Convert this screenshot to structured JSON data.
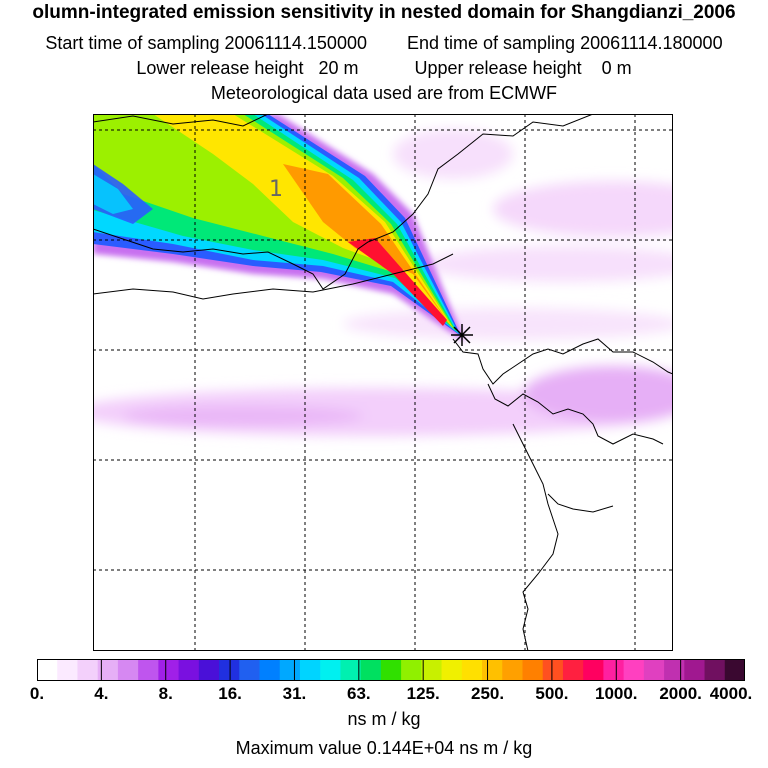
{
  "header": {
    "title": "olumn-integrated emission sensitivity in nested domain for Shangdianzi_2006",
    "start_label": "Start time of sampling",
    "start_value": "20061114.150000",
    "end_label": "End time of sampling",
    "end_value": "20061114.180000",
    "lower_label": "Lower release height",
    "lower_value": "20 m",
    "upper_label": "Upper release height",
    "upper_value": "0 m",
    "met_line": "Meteorological data used are from ECMWF"
  },
  "map": {
    "plume_label": "1",
    "receptor_marker": "star",
    "colors": {
      "lightpink": "#f5d8fb",
      "pink": "#e9b1f6",
      "violet": "#c870f0",
      "blue": "#2a5cff",
      "cyan": "#00e5ff",
      "green": "#9cf000",
      "yellow": "#ffe600",
      "orange": "#ff9a00",
      "red": "#ff1030"
    }
  },
  "colorbar": {
    "labels": [
      "0.",
      "4.",
      "8.",
      "16.",
      "31.",
      "63.",
      "125.",
      "250.",
      "500.",
      "1000.",
      "2000.",
      "4000."
    ],
    "colors": [
      "#ffffff",
      "#fbeaff",
      "#f3d0fb",
      "#e6aff6",
      "#d688f2",
      "#bf55ee",
      "#a020e8",
      "#7a10e0",
      "#4a10d8",
      "#2030e0",
      "#2060f0",
      "#0080ff",
      "#00a8ff",
      "#00d4ff",
      "#00f0f0",
      "#00f0b0",
      "#00e060",
      "#30e000",
      "#90f000",
      "#c8f000",
      "#f0f000",
      "#ffe000",
      "#ffc000",
      "#ffa000",
      "#ff8000",
      "#ff5020",
      "#ff2040",
      "#ff0060",
      "#ff20a0",
      "#ff40c0",
      "#e040c0",
      "#c030b0",
      "#a01890",
      "#701060",
      "#3a0830"
    ]
  },
  "units": "ns m / kg",
  "max_line": "Maximum value  0.144E+04 ns m / kg"
}
